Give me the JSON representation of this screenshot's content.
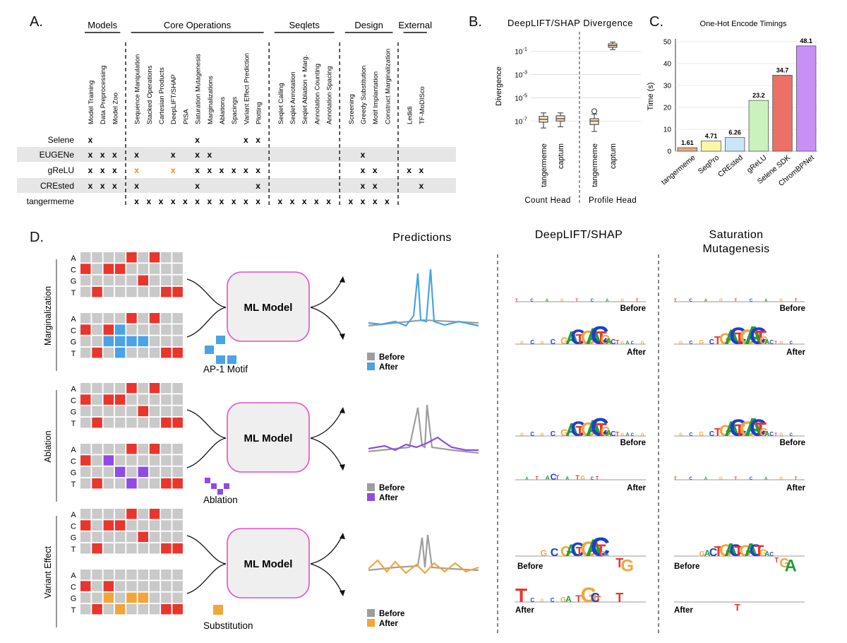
{
  "panels": {
    "a": "A.",
    "b": "B.",
    "c": "C.",
    "d": "D."
  },
  "table": {
    "groups": [
      {
        "label": "Models",
        "cols": [
          "Model Training",
          "Data Preprocessing",
          "Model Zoo"
        ]
      },
      {
        "label": "Core Operations",
        "cols": [
          "Sequence Manipulation",
          "Stacked Operations",
          "Cartesian Products",
          "DeepLIFT/SHAP",
          "PISA",
          "Saturation Mutagenesis",
          "Marginalizations",
          "Ablations",
          "Spacings",
          "Variant Effect Prediction",
          "Plotting"
        ]
      },
      {
        "label": "Seqlets",
        "cols": [
          "Seqlet Calling",
          "Seqlet Annotation",
          "Seqlet Ablation + Marg.",
          "Annotation Counting",
          "Annotation Spacing"
        ]
      },
      {
        "label": "Design",
        "cols": [
          "Screening",
          "Greedy Substitution",
          "Motif Implantation",
          "Construct Marginalization"
        ]
      },
      {
        "label": "External",
        "cols": [
          "Ledidi",
          "TF-MoDISco"
        ]
      }
    ],
    "mark": "x",
    "rows": [
      {
        "name": "Selene",
        "shaded": false,
        "marks": [
          0
        ],
        "marks2": [
          8,
          12,
          13
        ],
        "orange": []
      },
      {
        "name": "EUGENe",
        "shaded": true,
        "marks": [
          0,
          1,
          2,
          3,
          6,
          8,
          9
        ],
        "marks2": [
          20
        ],
        "orange": []
      },
      {
        "name": "gReLU",
        "shaded": false,
        "marks": [
          0,
          1,
          2,
          8,
          9,
          10,
          11,
          12,
          13,
          20,
          21,
          23,
          24
        ],
        "marks2": [],
        "orange": [
          3,
          6
        ]
      },
      {
        "name": "CREsted",
        "shaded": true,
        "marks": [
          0,
          1,
          2,
          3,
          8,
          13,
          20,
          21,
          24
        ],
        "marks2": [],
        "orange": []
      },
      {
        "name": "tangermeme",
        "shaded": false,
        "marks": [
          3,
          4,
          5,
          6,
          7,
          8,
          9,
          10,
          11,
          12,
          13,
          14,
          15,
          16,
          17,
          18,
          19,
          20,
          21,
          22
        ],
        "marks2": [],
        "orange": []
      }
    ]
  },
  "chart_data": [
    {
      "type": "box",
      "title": "DeepLIFT/SHAP Divergence",
      "ylabel": "Divergence",
      "yscale": "log",
      "ytick_labels": [
        "10^-1",
        "10^-3",
        "10^-5",
        "10^-7"
      ],
      "ytick_values": [
        -1,
        -3,
        -5,
        -7
      ],
      "ylim_log10": [
        -8.2,
        0.2
      ],
      "groups": [
        {
          "label": "Count Head",
          "boxes": [
            {
              "name": "tangermeme",
              "q1": -7.1,
              "median": -6.85,
              "q3": -6.6,
              "whislo": -7.6,
              "whishi": -6.3,
              "outliers": []
            },
            {
              "name": "captum",
              "q1": -7.0,
              "median": -6.8,
              "q3": -6.55,
              "whislo": -7.5,
              "whishi": -6.3,
              "outliers": []
            }
          ]
        },
        {
          "label": "Profile Head",
          "boxes": [
            {
              "name": "tangermeme",
              "q1": -7.3,
              "median": -7.0,
              "q3": -6.8,
              "whislo": -7.9,
              "whishi": -6.4,
              "outliers": [
                -6.15
              ]
            },
            {
              "name": "captum",
              "q1": -0.65,
              "median": -0.5,
              "q3": -0.35,
              "whislo": -0.85,
              "whishi": -0.2,
              "outliers": []
            }
          ]
        }
      ]
    },
    {
      "type": "bar",
      "title": "One-Hot Encode Timings",
      "ylabel": "Time (s)",
      "ylim": [
        0,
        50
      ],
      "yticks": [
        0,
        10,
        20,
        30,
        40,
        50
      ],
      "categories": [
        "tangermeme",
        "SeqPro",
        "CREsted",
        "gReLU",
        "Selene SDK",
        "ChromBPNet"
      ],
      "values": [
        1.61,
        4.71,
        6.26,
        23.2,
        34.7,
        48.1
      ],
      "value_labels": [
        "1.61",
        "4.71",
        "6.26",
        "23.2",
        "34.7",
        "48.1"
      ],
      "colors": [
        "#e8a87c",
        "#fbf5a8",
        "#c9e6f7",
        "#c9f2bd",
        "#ec7065",
        "#c890f5"
      ]
    }
  ],
  "diagram": {
    "bases": [
      "A",
      "C",
      "G",
      "T"
    ],
    "model_label": "ML Model",
    "col_predictions": "Predictions",
    "col_deeplift": "DeepLIFT/SHAP",
    "col_satmut_1": "Saturation",
    "col_satmut_2": "Mutagenesis",
    "before": "Before",
    "after": "After",
    "rows": [
      {
        "side": "Marginalization",
        "caption": "AP-1 Motif",
        "color": "#4aa3e6"
      },
      {
        "side": "Ablation",
        "caption": "Ablation",
        "color": "#8f4be6"
      },
      {
        "side": "Variant Effect",
        "caption": "Substitution",
        "color": "#f2a63a"
      }
    ]
  }
}
